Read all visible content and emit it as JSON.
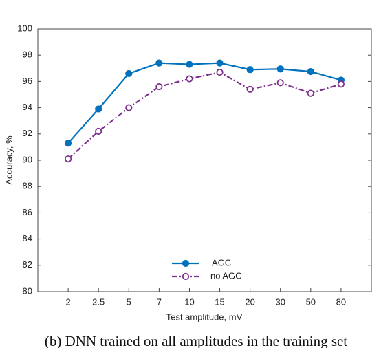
{
  "chart_data": {
    "type": "line",
    "xlabel": "Test amplitude, mV",
    "ylabel": "Accuracy, %",
    "caption": "(b) DNN trained on all amplitudes in the training set",
    "categories": [
      "2",
      "2.5",
      "5",
      "7",
      "10",
      "15",
      "20",
      "30",
      "50",
      "80"
    ],
    "series": [
      {
        "name": "AGC",
        "color": "#0072bd",
        "dash": "solid",
        "marker": "filled",
        "values": [
          91.3,
          93.9,
          96.6,
          97.4,
          97.3,
          97.4,
          96.9,
          96.95,
          96.75,
          96.1
        ]
      },
      {
        "name": "no AGC",
        "color": "#7e2f8e",
        "dash": "dashdot",
        "marker": "open",
        "values": [
          90.1,
          92.2,
          94.0,
          95.6,
          96.2,
          96.7,
          95.4,
          95.9,
          95.1,
          95.8
        ]
      }
    ],
    "ylim": [
      80,
      100
    ],
    "yticks": [
      80,
      82,
      84,
      86,
      88,
      90,
      92,
      94,
      96,
      98,
      100
    ],
    "legend": "lower center"
  }
}
